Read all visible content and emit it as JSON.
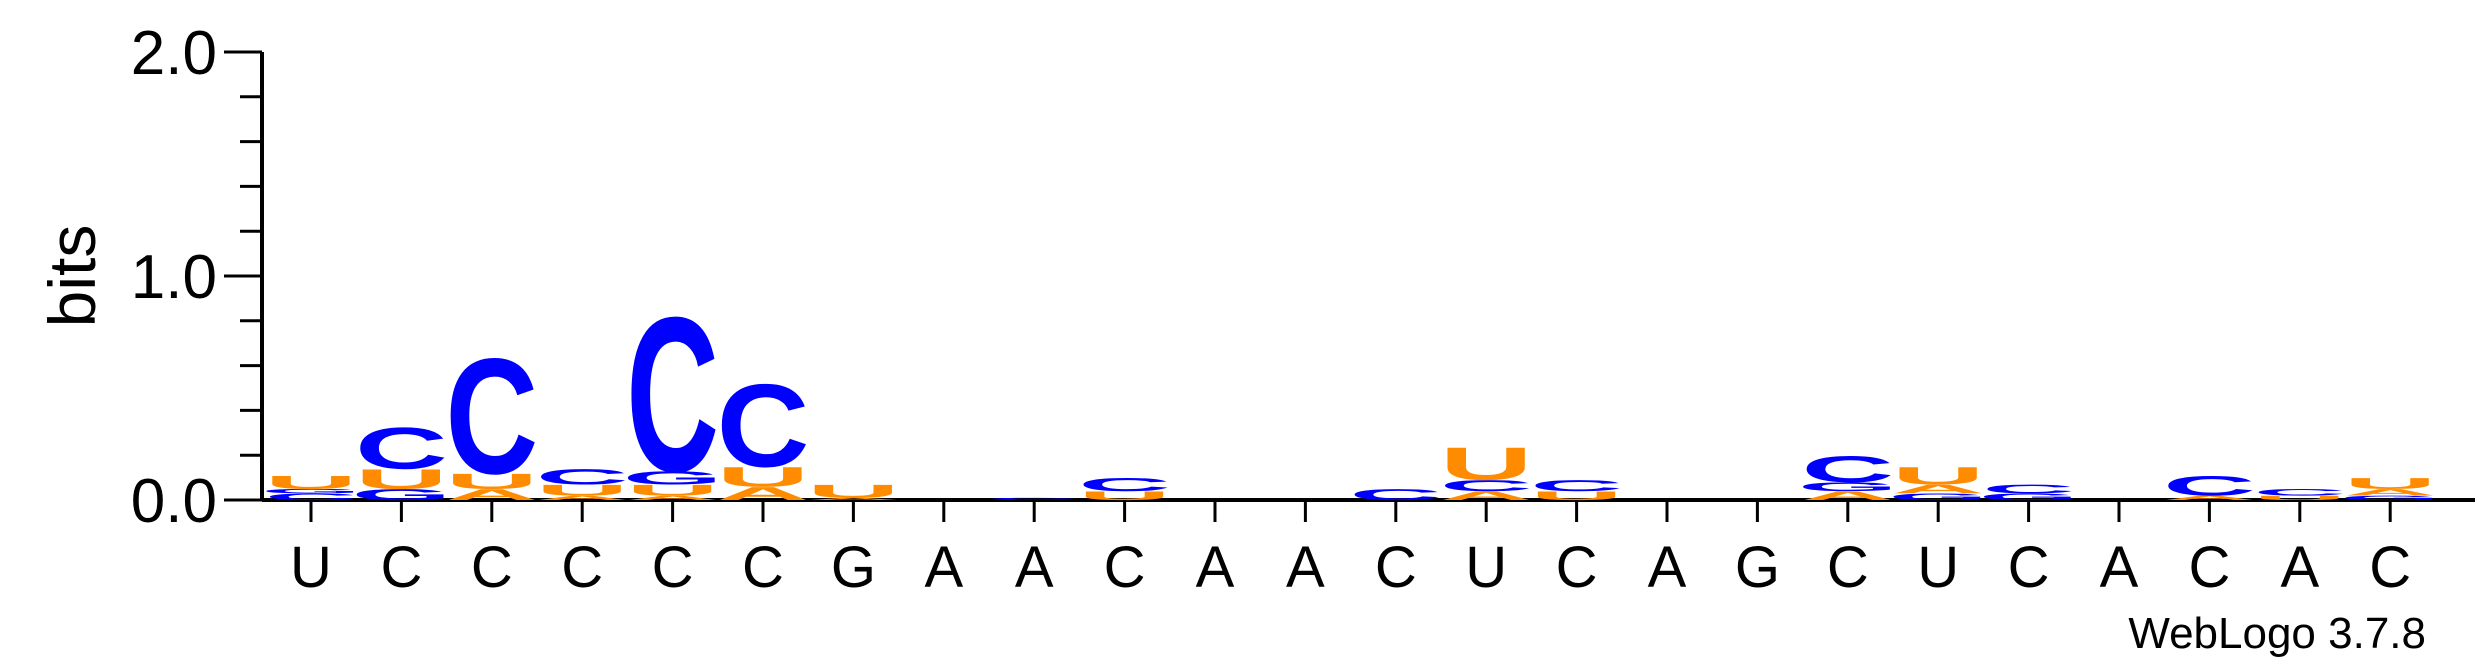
{
  "chart_data": {
    "type": "sequence-logo",
    "ylabel": "bits",
    "ylim": [
      0,
      2.0
    ],
    "yticks": [
      "0.0",
      "1.0",
      "2.0"
    ],
    "credit": "WebLogo 3.7.8",
    "colors": {
      "C": "#0000ff",
      "U": "#ff8c00",
      "A": "#ff8c00",
      "G": "#0000ff"
    },
    "xticks": [
      "U",
      "C",
      "C",
      "C",
      "C",
      "C",
      "G",
      "A",
      "A",
      "C",
      "A",
      "A",
      "C",
      "U",
      "C",
      "A",
      "G",
      "C",
      "U",
      "C",
      "A",
      "C",
      "A",
      "C"
    ],
    "positions": [
      {
        "stack": [
          [
            "C",
            0.03
          ],
          [
            "G",
            0.02
          ],
          [
            "U",
            0.06
          ]
        ]
      },
      {
        "stack": [
          [
            "G",
            0.05
          ],
          [
            "U",
            0.09
          ],
          [
            "C",
            0.19
          ]
        ]
      },
      {
        "stack": [
          [
            "A",
            0.05
          ],
          [
            "U",
            0.07
          ],
          [
            "C",
            0.53
          ]
        ]
      },
      {
        "stack": [
          [
            "A",
            0.02
          ],
          [
            "U",
            0.05
          ],
          [
            "C",
            0.07
          ]
        ]
      },
      {
        "stack": [
          [
            "A",
            0.02
          ],
          [
            "U",
            0.05
          ],
          [
            "G",
            0.06
          ],
          [
            "C",
            0.71
          ]
        ]
      },
      {
        "stack": [
          [
            "A",
            0.06
          ],
          [
            "U",
            0.09
          ],
          [
            "C",
            0.38
          ]
        ]
      },
      {
        "stack": [
          [
            "A",
            0.01
          ],
          [
            "U",
            0.06
          ]
        ]
      },
      {
        "stack": []
      },
      {
        "stack": [
          [
            "C",
            0.01
          ]
        ]
      },
      {
        "stack": [
          [
            "U",
            0.04
          ],
          [
            "C",
            0.06
          ]
        ]
      },
      {
        "stack": []
      },
      {
        "stack": []
      },
      {
        "stack": [
          [
            "C",
            0.05
          ]
        ]
      },
      {
        "stack": [
          [
            "A",
            0.04
          ],
          [
            "C",
            0.05
          ],
          [
            "U",
            0.15
          ]
        ]
      },
      {
        "stack": [
          [
            "U",
            0.04
          ],
          [
            "C",
            0.05
          ]
        ]
      },
      {
        "stack": []
      },
      {
        "stack": []
      },
      {
        "stack": [
          [
            "A",
            0.04
          ],
          [
            "G",
            0.04
          ],
          [
            "C",
            0.12
          ]
        ]
      },
      {
        "stack": [
          [
            "G",
            0.03
          ],
          [
            "A",
            0.04
          ],
          [
            "U",
            0.08
          ]
        ]
      },
      {
        "stack": [
          [
            "G",
            0.03
          ],
          [
            "C",
            0.04
          ]
        ]
      },
      {
        "stack": []
      },
      {
        "stack": [
          [
            "A",
            0.02
          ],
          [
            "C",
            0.09
          ]
        ]
      },
      {
        "stack": [
          [
            "U",
            0.02
          ],
          [
            "C",
            0.03
          ]
        ]
      },
      {
        "stack": [
          [
            "G",
            0.02
          ],
          [
            "A",
            0.03
          ],
          [
            "U",
            0.05
          ]
        ]
      }
    ]
  }
}
